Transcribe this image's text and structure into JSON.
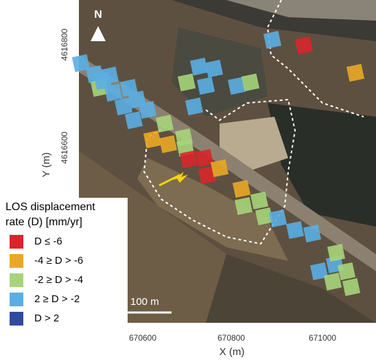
{
  "north": "N",
  "axes": {
    "x_label": "X (m)",
    "y_label": "Y (m)",
    "x_ticks": [
      "670600",
      "670800",
      "671000"
    ],
    "y_ticks": [
      "4616800",
      "4616600"
    ]
  },
  "scale_bar": "100 m",
  "legend": {
    "title": [
      "LOS displacement",
      "rate (D) [mm/yr]"
    ],
    "items": [
      {
        "label": "D ≤ -6",
        "color": "#d9262b"
      },
      {
        "label": "-4 ≥ D > -6",
        "color": "#eaa826"
      },
      {
        "label": "-2 ≥ D > -4",
        "color": "#a6d47a"
      },
      {
        "label": "2 ≥ D > -2",
        "color": "#5aaee3"
      },
      {
        "label": "D > 2",
        "color": "#2f4a9e"
      }
    ]
  }
}
